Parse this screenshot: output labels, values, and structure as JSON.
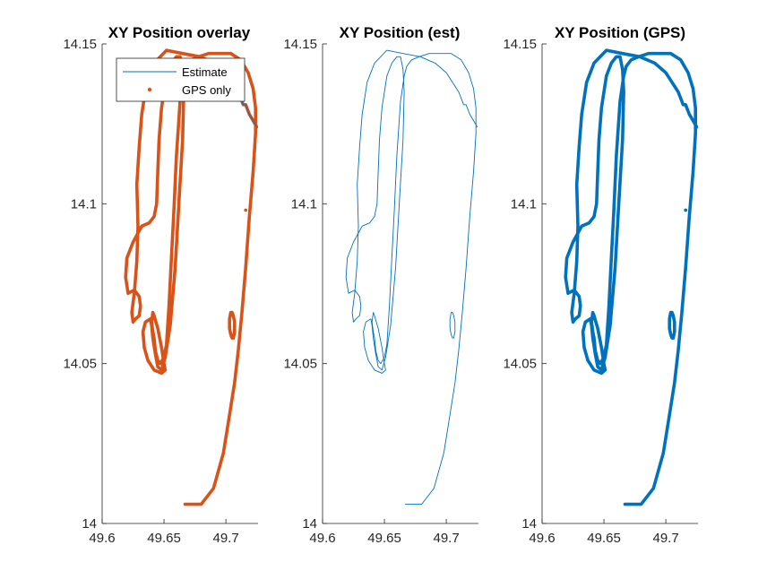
{
  "colors": {
    "estimate": "#0072BD",
    "gps": "#D95319",
    "axis": "#262626"
  },
  "chart_data": [
    {
      "type": "line",
      "title": "XY Position overlay",
      "xlabel": "",
      "ylabel": "",
      "xlim": [
        49.6,
        49.726
      ],
      "ylim": [
        14.0,
        14.15
      ],
      "xticks": [
        "49.6",
        "49.65",
        "49.7"
      ],
      "yticks": [
        "14",
        "14.05",
        "14.1",
        "14.15"
      ],
      "grid": false,
      "legend": "top-left",
      "series": [
        {
          "name": "Estimate",
          "style": "thin line",
          "ref": "trajectory"
        },
        {
          "name": "GPS only",
          "style": "thick dots",
          "ref": "trajectory"
        }
      ]
    },
    {
      "type": "line",
      "title": "XY Position (est)",
      "xlabel": "",
      "ylabel": "",
      "xlim": [
        49.6,
        49.726
      ],
      "ylim": [
        14.0,
        14.15
      ],
      "xticks": [
        "49.6",
        "49.65",
        "49.7"
      ],
      "yticks": [
        "14",
        "14.05",
        "14.1",
        "14.15"
      ],
      "grid": false,
      "series": [
        {
          "style": "thin line",
          "ref": "trajectory"
        }
      ]
    },
    {
      "type": "line",
      "title": "XY Position (GPS)",
      "xlabel": "",
      "ylabel": "",
      "xlim": [
        49.6,
        49.726
      ],
      "ylim": [
        14.0,
        14.15
      ],
      "xticks": [
        "49.6",
        "49.65",
        "49.7"
      ],
      "yticks": [
        "14",
        "14.05",
        "14.1",
        "14.15"
      ],
      "grid": false,
      "series": [
        {
          "style": "thick line",
          "ref": "trajectory"
        }
      ]
    }
  ],
  "trajectory": {
    "x": [
      49.667,
      49.68,
      49.69,
      49.698,
      49.703,
      49.707,
      49.71,
      49.713,
      49.716,
      49.719,
      49.722,
      49.724,
      49.724,
      49.722,
      49.718,
      49.712,
      49.704,
      49.695,
      49.686,
      49.678,
      49.672,
      49.668,
      49.666,
      49.663,
      49.66,
      49.658,
      49.656,
      49.654,
      49.652,
      49.65,
      49.647,
      49.645,
      49.643,
      49.642,
      49.641,
      49.64,
      49.641,
      49.642,
      49.645,
      49.648,
      49.65,
      49.651,
      49.648,
      49.642,
      49.637,
      49.634,
      49.633,
      49.635,
      49.639,
      49.64,
      49.641,
      49.643,
      49.645,
      49.648,
      49.651,
      49.655,
      49.659,
      49.662,
      49.665,
      49.666,
      49.665,
      49.663,
      49.66,
      49.656,
      49.652,
      49.648,
      49.646,
      49.645,
      49.644,
      49.642,
      49.638,
      49.632,
      49.625,
      49.62,
      49.619,
      49.621,
      49.626,
      49.63,
      49.631,
      49.63,
      49.627,
      49.625,
      49.624,
      49.626,
      49.628,
      49.629,
      49.628,
      49.63,
      49.632,
      49.636,
      49.642,
      49.652,
      49.665,
      49.679,
      49.691,
      49.7,
      49.705,
      49.71,
      49.712,
      49.714,
      49.716,
      49.719,
      49.722,
      49.725
    ],
    "y": [
      14.006,
      14.006,
      14.011,
      14.022,
      14.034,
      14.044,
      14.054,
      14.066,
      14.08,
      14.096,
      14.11,
      14.122,
      14.13,
      14.136,
      14.141,
      14.145,
      14.147,
      14.147,
      14.147,
      14.146,
      14.145,
      14.143,
      14.14,
      14.132,
      14.115,
      14.098,
      14.083,
      14.068,
      14.056,
      14.052,
      14.05,
      14.051,
      14.054,
      14.058,
      14.06,
      14.063,
      14.066,
      14.065,
      14.061,
      14.055,
      14.05,
      14.048,
      14.047,
      14.048,
      14.051,
      14.055,
      14.06,
      14.063,
      14.064,
      14.062,
      14.058,
      14.053,
      14.049,
      14.048,
      14.052,
      14.062,
      14.08,
      14.1,
      14.12,
      14.135,
      14.142,
      14.146,
      14.146,
      14.144,
      14.14,
      14.13,
      14.12,
      14.11,
      14.1,
      14.096,
      14.094,
      14.093,
      14.088,
      14.083,
      14.077,
      14.072,
      14.073,
      14.071,
      14.068,
      14.065,
      14.064,
      14.063,
      14.066,
      14.072,
      14.082,
      14.093,
      14.106,
      14.118,
      14.128,
      14.138,
      14.144,
      14.148,
      14.147,
      14.146,
      14.144,
      14.141,
      14.138,
      14.135,
      14.133,
      14.131,
      14.131,
      14.128,
      14.126,
      14.124
    ]
  },
  "loop": {
    "x": [
      49.704,
      49.705,
      49.706,
      49.707,
      49.707,
      49.706,
      49.705,
      49.704,
      49.703,
      49.703,
      49.704
    ],
    "y": [
      14.059,
      14.058,
      14.058,
      14.06,
      14.063,
      14.065,
      14.066,
      14.066,
      14.064,
      14.061,
      14.059
    ]
  },
  "marker": {
    "x": 49.716,
    "y": 14.098
  }
}
